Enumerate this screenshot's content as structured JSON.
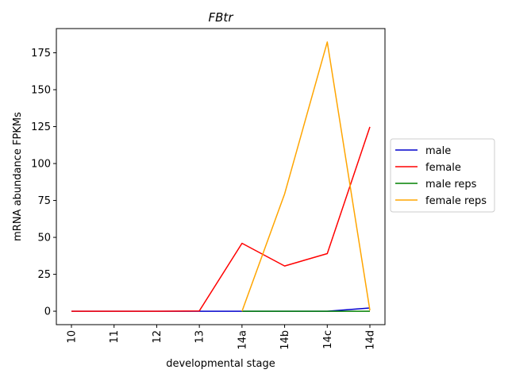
{
  "chart_data": {
    "type": "line",
    "title": "FBtr",
    "xlabel": "developmental stage",
    "ylabel": "mRNA abundance FPKMs",
    "categories": [
      "10",
      "11",
      "12",
      "13",
      "14a",
      "14b",
      "14c",
      "14d"
    ],
    "ylim": [
      -9.1,
      191.4
    ],
    "yticks": [
      0,
      25,
      50,
      75,
      100,
      125,
      150,
      175
    ],
    "grid": false,
    "legend_position": "right-outside",
    "series": [
      {
        "name": "male",
        "color": "#0000cc",
        "values": [
          0,
          0,
          0,
          0,
          0,
          0,
          0,
          2.2
        ]
      },
      {
        "name": "female",
        "color": "#ff0000",
        "values": [
          0,
          0,
          0,
          0.2,
          46.0,
          30.6,
          39.0,
          124.8
        ]
      },
      {
        "name": "male reps",
        "color": "#008000",
        "values": [
          null,
          null,
          null,
          null,
          0,
          0,
          0,
          0
        ]
      },
      {
        "name": "female reps",
        "color": "#ffa500",
        "values": [
          null,
          null,
          null,
          null,
          0,
          79.5,
          182.3,
          0.6
        ]
      }
    ]
  }
}
